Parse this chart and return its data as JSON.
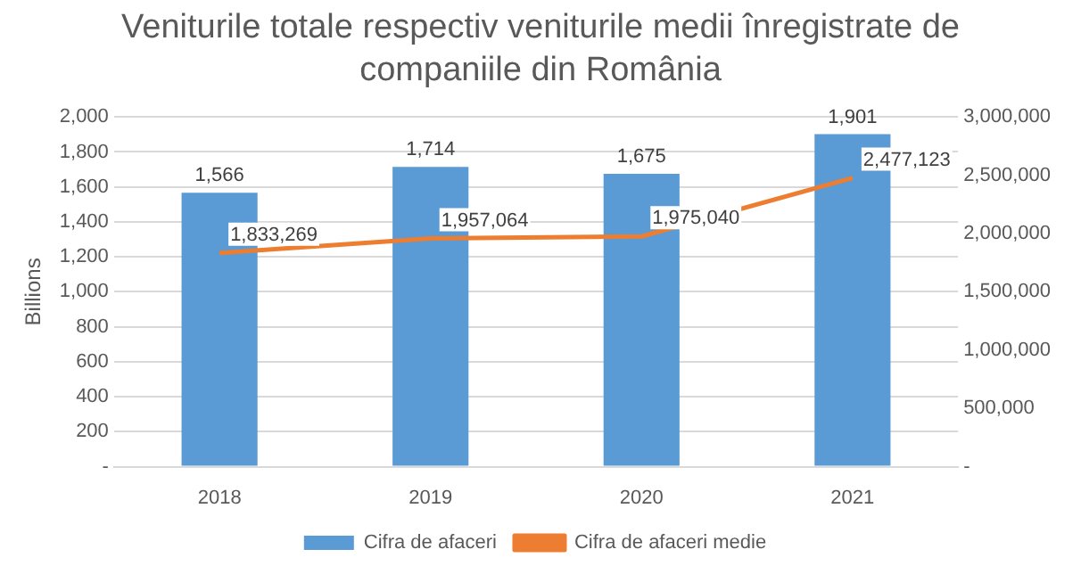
{
  "chart_data": {
    "type": "bar",
    "title": "Veniturile totale respectiv veniturile medii înregistrate de companiile din România",
    "ylabel": "Billions",
    "categories": [
      "2018",
      "2019",
      "2020",
      "2021"
    ],
    "series": [
      {
        "name": "Cifra de afaceri",
        "color": "#5b9bd5",
        "values": [
          1566,
          1714,
          1675,
          1901
        ],
        "value_labels": [
          "1,566",
          "1,714",
          "1,675",
          "1,901"
        ]
      },
      {
        "name": "Cifra de afaceri medie",
        "type": "line",
        "axis": "y2",
        "color": "#ed7d31",
        "values": [
          1833269,
          1957064,
          1975040,
          2477123
        ],
        "value_labels": [
          "1,833,269",
          "1,957,064",
          "1,975,040",
          "2,477,123"
        ]
      }
    ],
    "ylim": [
      0,
      2000
    ],
    "yticks": [
      {
        "value": 0,
        "label": "-"
      },
      200,
      400,
      600,
      800,
      {
        "value": 1000,
        "label": "1,000"
      },
      {
        "value": 1200,
        "label": "1,200"
      },
      {
        "value": 1400,
        "label": "1,400"
      },
      {
        "value": 1600,
        "label": "1,600"
      },
      {
        "value": 1800,
        "label": "1,800"
      },
      {
        "value": 2000,
        "label": "2,000"
      }
    ],
    "y2lim": [
      0,
      3000000
    ],
    "y2ticks": [
      {
        "value": 0,
        "label": "-"
      },
      {
        "value": 500000,
        "label": "500,000"
      },
      {
        "value": 1000000,
        "label": "1,000,000"
      },
      {
        "value": 1500000,
        "label": "1,500,000"
      },
      {
        "value": 2000000,
        "label": "2,000,000"
      },
      {
        "value": 2500000,
        "label": "2,500,000"
      },
      {
        "value": 3000000,
        "label": "3,000,000"
      }
    ],
    "grid": "y",
    "legend": "bottom",
    "marker": "none",
    "line_style": "solid"
  }
}
